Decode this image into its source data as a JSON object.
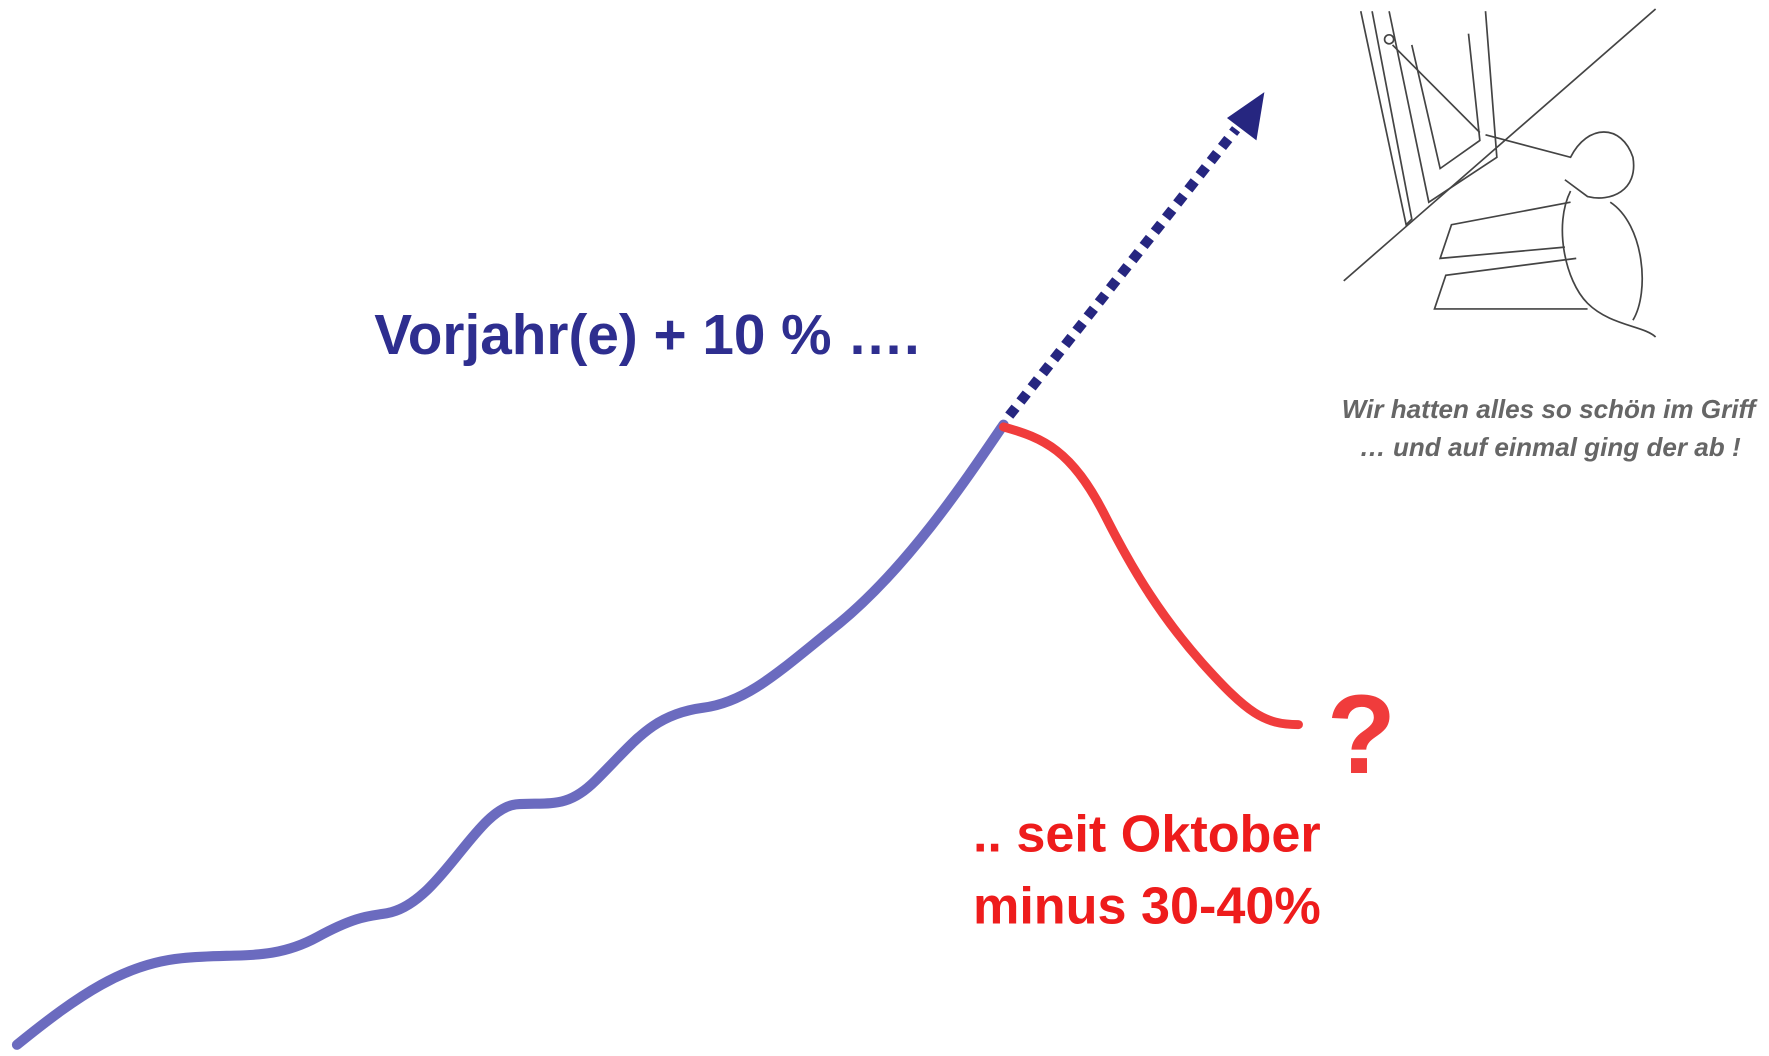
{
  "headline": "Vorjahr(e) + 10 % ….",
  "caption": {
    "line1": "Wir hatten alles so schön im Griff",
    "line2": "… und auf einmal ging der ab !"
  },
  "question_mark": "?",
  "callout": {
    "line1": ".. seit Oktober",
    "line2": "minus 30-40%"
  }
}
